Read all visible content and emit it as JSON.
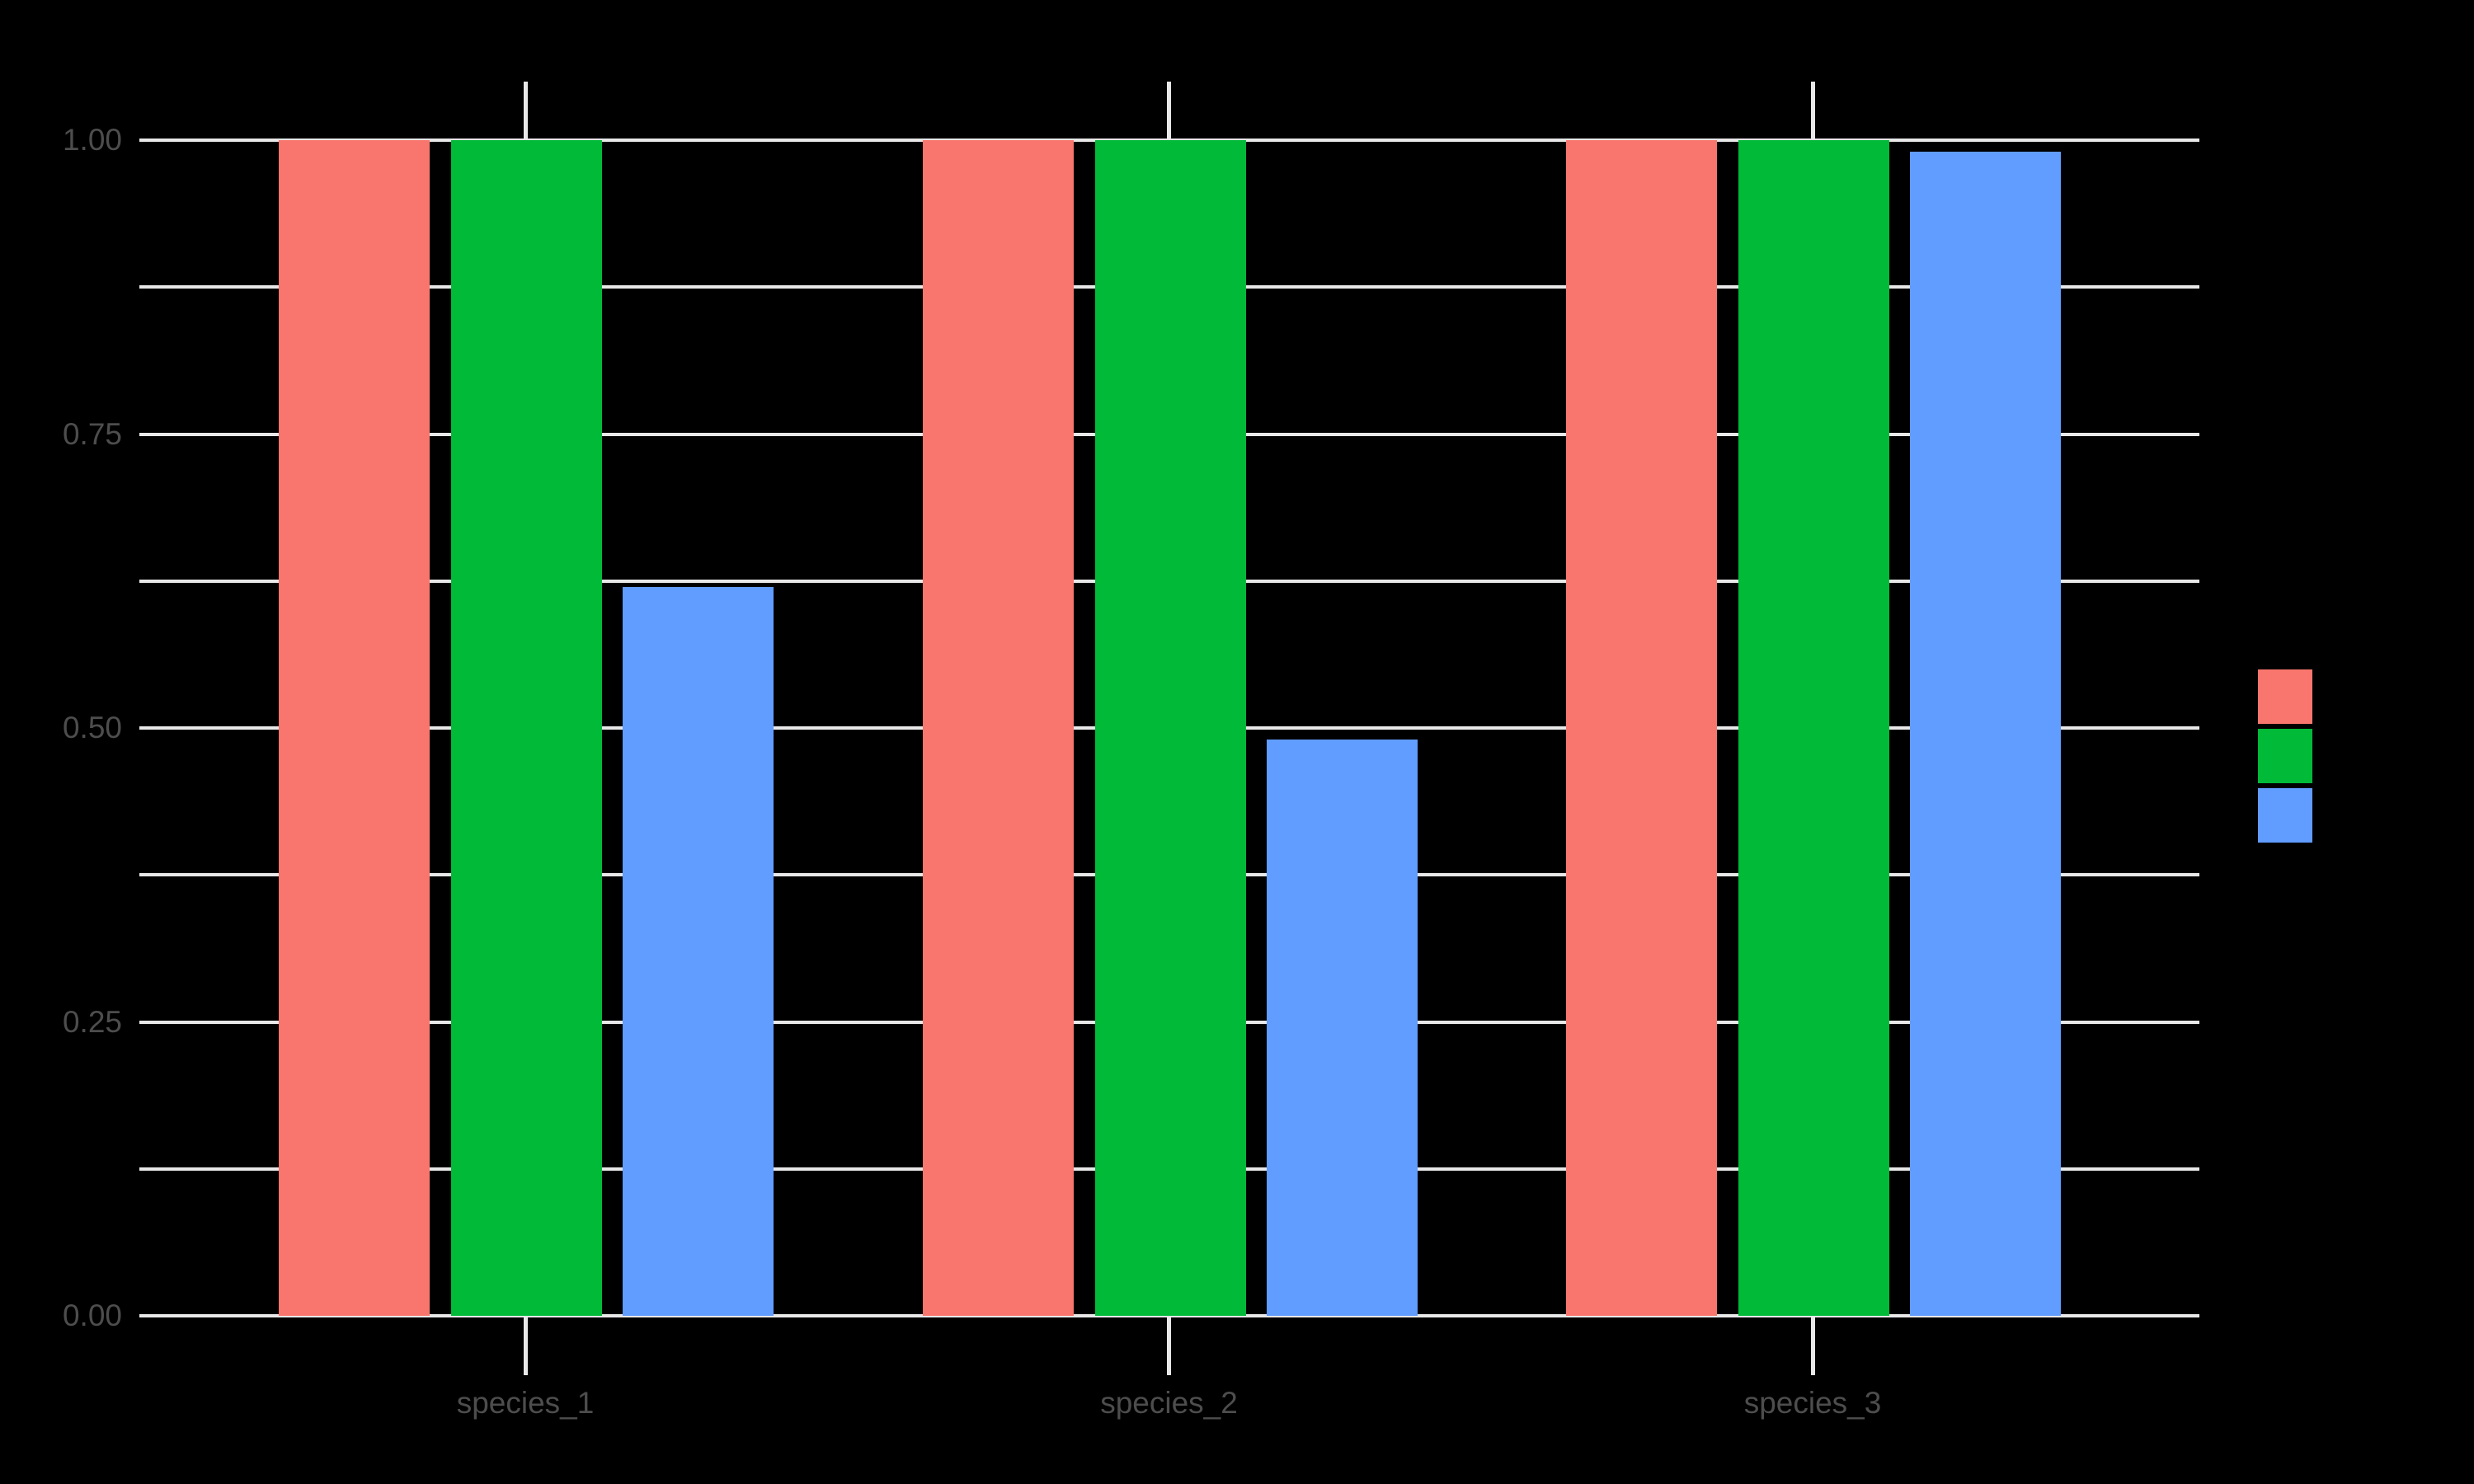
{
  "chart_data": {
    "type": "bar",
    "title": "",
    "xlabel": "",
    "ylabel": "",
    "categories": [
      "species_1",
      "species_2",
      "species_3"
    ],
    "series": [
      {
        "name": "red",
        "color": "#F8766D",
        "values": [
          1.0,
          1.0,
          1.0
        ]
      },
      {
        "name": "green",
        "color": "#00BA38",
        "values": [
          1.0,
          1.0,
          1.0
        ]
      },
      {
        "name": "blue",
        "color": "#619CFF",
        "values": [
          0.62,
          0.49,
          0.99
        ]
      }
    ],
    "y_ticks": [
      "0.00",
      "0.25",
      "0.50",
      "0.75",
      "1.00"
    ],
    "y_tick_values": [
      0,
      0.25,
      0.5,
      0.75,
      1.0
    ],
    "ylim": [
      0,
      1
    ],
    "grid": "horizontal major and minor gridlines, light on black; minor lines midway between major ticks",
    "legend_position": "right",
    "legend_labels_visible": false,
    "legend_swatches": [
      "#F8766D",
      "#00BA38",
      "#619CFF"
    ],
    "colors": {
      "background": "#000000",
      "gridline": "#E8E8E8",
      "tick": "#E8E8E8",
      "axis_text": "#4D4D4D"
    }
  }
}
